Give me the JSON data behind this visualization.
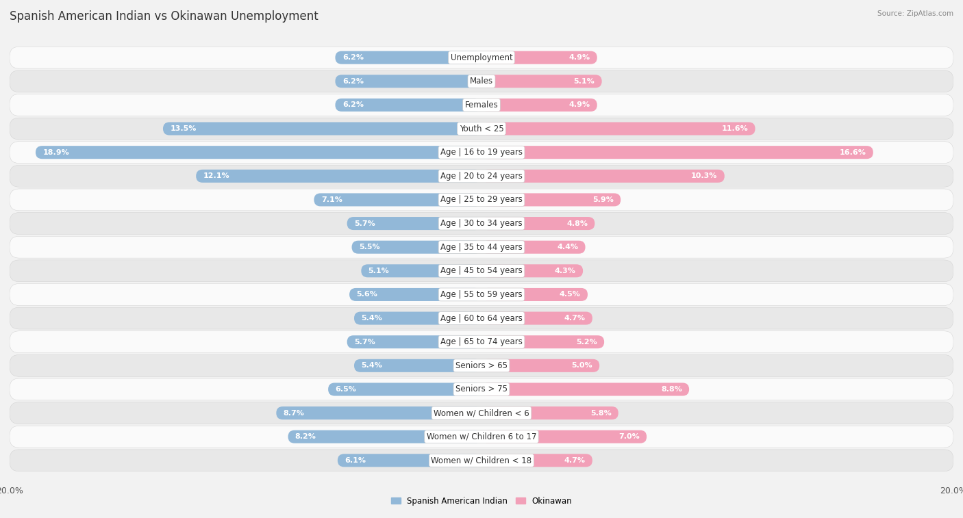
{
  "title": "Spanish American Indian vs Okinawan Unemployment",
  "source": "Source: ZipAtlas.com",
  "categories": [
    "Unemployment",
    "Males",
    "Females",
    "Youth < 25",
    "Age | 16 to 19 years",
    "Age | 20 to 24 years",
    "Age | 25 to 29 years",
    "Age | 30 to 34 years",
    "Age | 35 to 44 years",
    "Age | 45 to 54 years",
    "Age | 55 to 59 years",
    "Age | 60 to 64 years",
    "Age | 65 to 74 years",
    "Seniors > 65",
    "Seniors > 75",
    "Women w/ Children < 6",
    "Women w/ Children 6 to 17",
    "Women w/ Children < 18"
  ],
  "left_values": [
    6.2,
    6.2,
    6.2,
    13.5,
    18.9,
    12.1,
    7.1,
    5.7,
    5.5,
    5.1,
    5.6,
    5.4,
    5.7,
    5.4,
    6.5,
    8.7,
    8.2,
    6.1
  ],
  "right_values": [
    4.9,
    5.1,
    4.9,
    11.6,
    16.6,
    10.3,
    5.9,
    4.8,
    4.4,
    4.3,
    4.5,
    4.7,
    5.2,
    5.0,
    8.8,
    5.8,
    7.0,
    4.7
  ],
  "left_color": "#92b8d8",
  "right_color": "#f2a0b8",
  "left_label": "Spanish American Indian",
  "right_label": "Okinawan",
  "max_val": 20.0,
  "bg_color": "#f2f2f2",
  "row_bg_light": "#fafafa",
  "row_bg_dark": "#e8e8e8",
  "title_fontsize": 12,
  "label_fontsize": 8.5,
  "value_fontsize": 8,
  "axis_label_fontsize": 9
}
